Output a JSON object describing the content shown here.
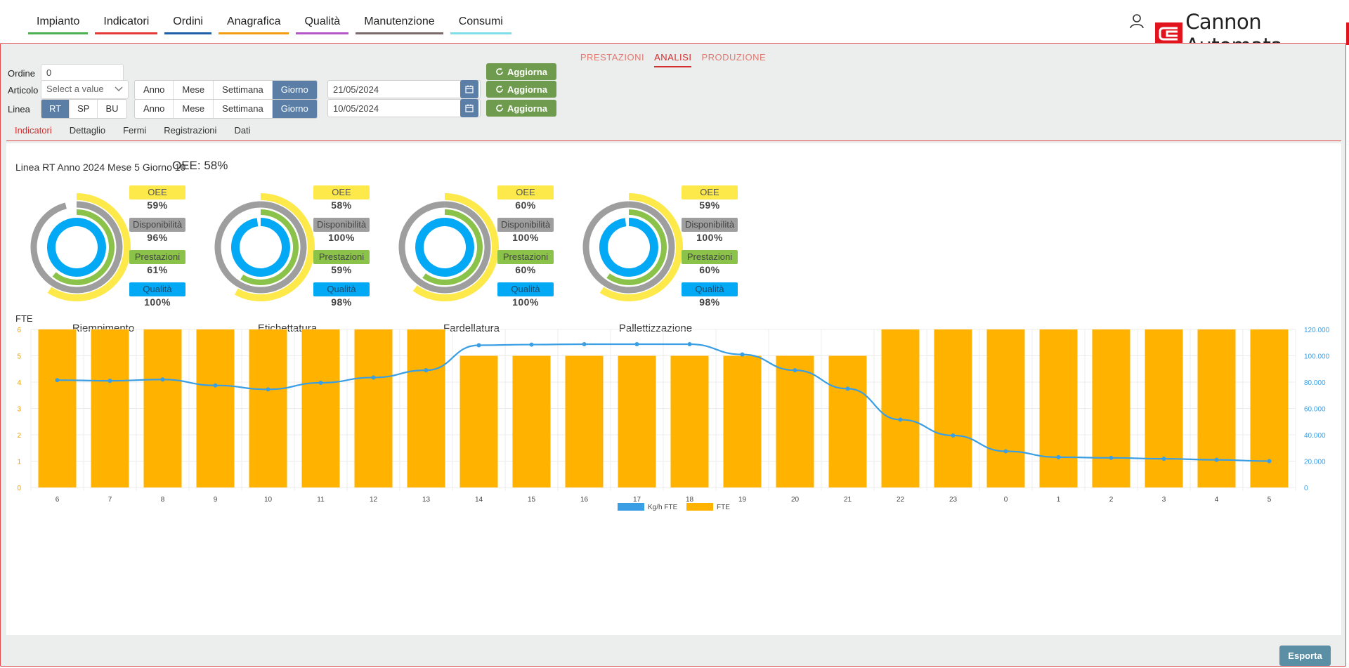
{
  "nav": {
    "items": [
      {
        "label": "Impianto",
        "color": "#4caf50"
      },
      {
        "label": "Indicatori",
        "color": "#e53935"
      },
      {
        "label": "Ordini",
        "color": "#1e5fa8"
      },
      {
        "label": "Anagrafica",
        "color": "#f39c12"
      },
      {
        "label": "Qualità",
        "color": "#b455c8"
      },
      {
        "label": "Manutenzione",
        "color": "#7a6a6a"
      },
      {
        "label": "Consumi",
        "color": "#80deea"
      }
    ],
    "active_index": 1
  },
  "brand": {
    "logo_text": "Cannon Automata",
    "color": "#e1141e"
  },
  "subtabs": [
    {
      "label": "PRESTAZIONI",
      "active": false
    },
    {
      "label": "ANALISI",
      "active": true
    },
    {
      "label": "PRODUZIONE",
      "active": false
    }
  ],
  "form": {
    "ordine_label": "Ordine",
    "ordine_value": "0",
    "articolo_label": "Articolo",
    "articolo_placeholder": "Select a value",
    "linea_label": "Linea",
    "linea_options": [
      "RT",
      "SP",
      "BU"
    ],
    "linea_selected": "RT",
    "period_options": [
      "Anno",
      "Mese",
      "Settimana",
      "Giorno"
    ],
    "period_selected": "Giorno",
    "date1": "21/05/2024",
    "date2": "10/05/2024",
    "aggiorna_label": "Aggiorna"
  },
  "view_tabs": [
    {
      "label": "Indicatori",
      "active": true
    },
    {
      "label": "Dettaglio",
      "active": false
    },
    {
      "label": "Fermi",
      "active": false
    },
    {
      "label": "Registrazioni",
      "active": false
    },
    {
      "label": "Dati",
      "active": false
    }
  ],
  "summary": {
    "heading": "Linea RT Anno 2024 Mese 5 Giorno 10",
    "oee_total": "OEE: 58%"
  },
  "badge_labels": {
    "oee": "OEE",
    "disp": "Disponibilità",
    "prest": "Prestazioni",
    "qual": "Qualità"
  },
  "gauges": [
    {
      "name": "Riempimento",
      "oee": 59,
      "disp": 96,
      "prest": 61,
      "qual": 100
    },
    {
      "name": "Etichettatura",
      "oee": 58,
      "disp": 100,
      "prest": 59,
      "qual": 98
    },
    {
      "name": "Fardellatura",
      "oee": 60,
      "disp": 100,
      "prest": 60,
      "qual": 100
    },
    {
      "name": "Pallettizzazione",
      "oee": 59,
      "disp": 100,
      "prest": 60,
      "qual": 98
    }
  ],
  "gauge_colors": {
    "oee": "#fde94a",
    "disp": "#9e9e9e",
    "prest": "#8bc34a",
    "qual": "#03a9f4"
  },
  "chart_data": {
    "type": "bar",
    "title": "FTE",
    "categories": [
      "6",
      "7",
      "8",
      "9",
      "10",
      "11",
      "12",
      "13",
      "14",
      "15",
      "16",
      "17",
      "18",
      "19",
      "20",
      "21",
      "22",
      "23",
      "0",
      "1",
      "2",
      "3",
      "4",
      "5"
    ],
    "series": [
      {
        "name": "Kg/h FTE",
        "type": "line",
        "axis": "right",
        "color": "#3a9ee4",
        "values": [
          81500,
          81000,
          82000,
          77500,
          74500,
          79500,
          83500,
          89000,
          108000,
          108500,
          108800,
          108800,
          108800,
          101000,
          89000,
          75000,
          51500,
          39500,
          27500,
          23000,
          22500,
          21800,
          21000,
          20000
        ]
      },
      {
        "name": "FTE",
        "type": "bar",
        "axis": "left",
        "color": "#ffb300",
        "values": [
          6,
          6,
          6,
          6,
          6,
          6,
          6,
          6,
          5,
          5,
          5,
          5,
          5,
          5,
          5,
          5,
          6,
          6,
          6,
          6,
          6,
          6,
          6,
          6
        ]
      }
    ],
    "y_left": {
      "min": 0,
      "max": 6,
      "ticks": [
        "0",
        "1",
        "2",
        "3",
        "4",
        "5",
        "6"
      ]
    },
    "y_right": {
      "min": 0,
      "max": 120000,
      "ticks": [
        "0",
        "20.000",
        "40.000",
        "60.000",
        "80.000",
        "100.000",
        "120.000"
      ]
    },
    "grid": true,
    "legend_position": "bottom"
  },
  "export_label": "Esporta"
}
